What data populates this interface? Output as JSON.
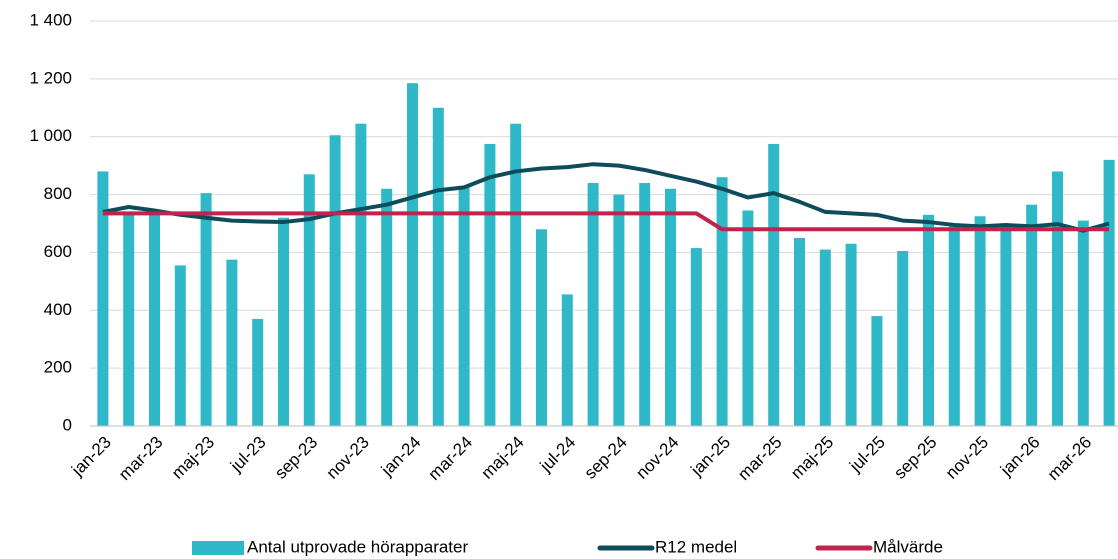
{
  "chart_data": {
    "type": "bar_line",
    "categories": [
      "jan-23",
      null,
      "mar-23",
      null,
      "maj-23",
      null,
      "jul-23",
      null,
      "sep-23",
      null,
      "nov-23",
      null,
      "jan-24",
      null,
      "mar-24",
      null,
      "maj-24",
      null,
      "jul-24",
      null,
      "sep-24",
      null,
      "nov-24",
      null,
      "jan-25",
      null,
      "mar-25",
      null,
      "maj-25",
      null,
      "jul-25",
      null,
      "sep-25",
      null,
      "nov-25",
      null,
      "jan-26",
      null,
      "mar-26",
      null
    ],
    "series": [
      {
        "name": "Antal utprovade hörapparater",
        "type": "bar",
        "color": "#2fb8c8",
        "values": [
          880,
          740,
          735,
          555,
          805,
          575,
          370,
          720,
          870,
          1005,
          1045,
          820,
          1185,
          1100,
          830,
          975,
          1045,
          680,
          455,
          840,
          800,
          840,
          820,
          615,
          860,
          745,
          975,
          650,
          610,
          630,
          380,
          605,
          730,
          690,
          725,
          690,
          765,
          880,
          710,
          920
        ]
      },
      {
        "name": "R12 medel",
        "type": "line",
        "color": "#0e4b5b",
        "values": [
          740,
          757,
          745,
          730,
          720,
          710,
          707,
          705,
          715,
          735,
          750,
          765,
          790,
          815,
          825,
          860,
          880,
          890,
          895,
          905,
          900,
          885,
          865,
          845,
          820,
          790,
          805,
          775,
          740,
          735,
          730,
          710,
          705,
          695,
          690,
          695,
          690,
          698,
          675,
          700
        ]
      },
      {
        "name": "Målvärde",
        "type": "line",
        "color": "#c0244c",
        "values": [
          735,
          735,
          735,
          735,
          735,
          735,
          735,
          735,
          735,
          735,
          735,
          735,
          735,
          735,
          735,
          735,
          735,
          735,
          735,
          735,
          735,
          735,
          735,
          735,
          680,
          680,
          680,
          680,
          680,
          680,
          680,
          680,
          680,
          680,
          680,
          680,
          680,
          680,
          680,
          680
        ]
      }
    ],
    "ylim": [
      0,
      1400
    ],
    "yticks": [
      0,
      200,
      400,
      600,
      800,
      {
        "value": 1000,
        "label": "1 000"
      },
      {
        "value": 1200,
        "label": "1 200"
      },
      {
        "value": 1400,
        "label": "1 400"
      }
    ],
    "legend": "bottom"
  }
}
